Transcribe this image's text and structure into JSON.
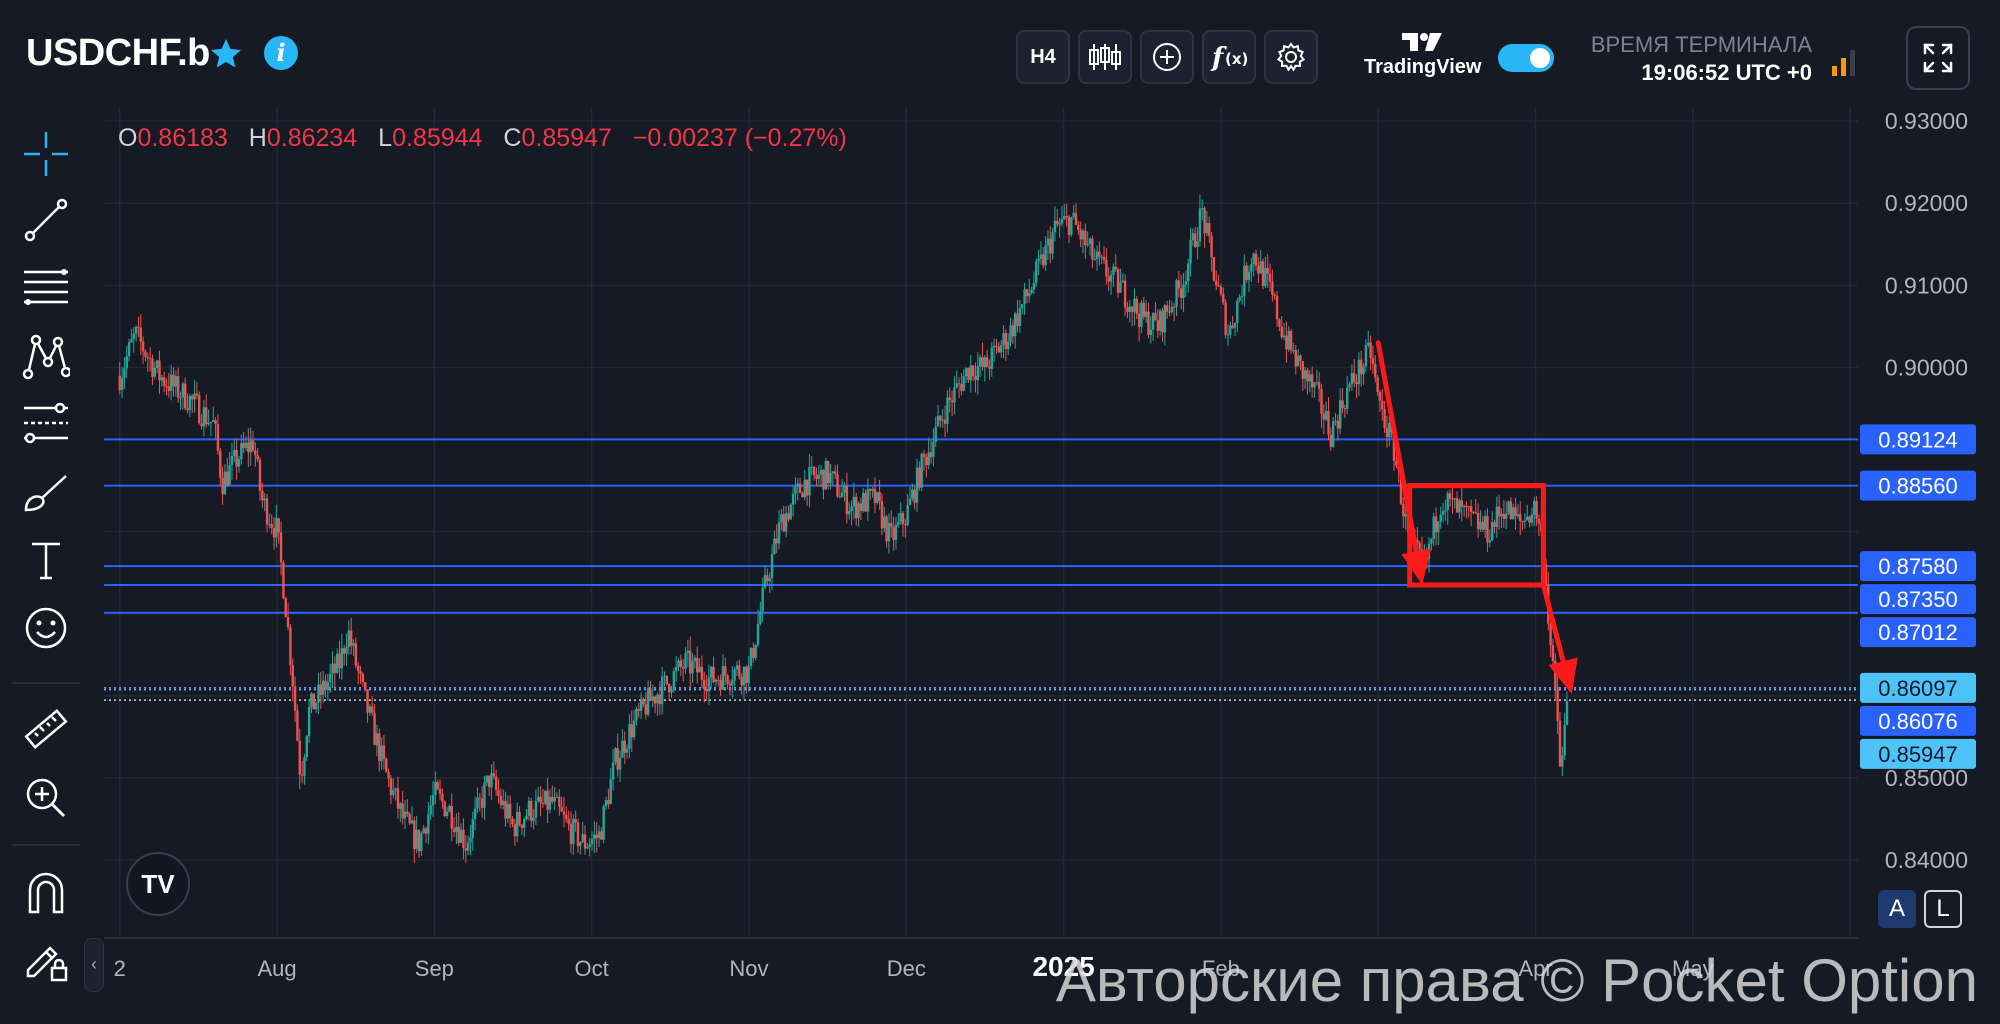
{
  "header": {
    "symbol": "USDCHF.b",
    "star_icon": "star-icon",
    "info_icon": "info-icon",
    "info_glyph": "i",
    "timeframe": "H4",
    "toolbar_icons": [
      "candles-icon",
      "add-circle-icon",
      "indicators-icon",
      "gear-icon"
    ],
    "tradingview_logo": "TradingView",
    "toggle_on": true,
    "terminal_label": "ВРЕМЯ ТЕРМИНАЛА",
    "terminal_time": "19:06:52 UTC +0",
    "signal_icon": "signal-bars-icon",
    "fullscreen_icon": "fullscreen-icon"
  },
  "left_toolbar": [
    "crosshair-icon",
    "trend-line-icon",
    "fib-levels-icon",
    "pattern-icon",
    "projection-icon",
    "brush-icon",
    "text-icon",
    "emoji-icon",
    "ruler-icon",
    "zoom-in-icon",
    "magnet-icon",
    "lock-pencil-icon"
  ],
  "ohlc": {
    "o_label": "O",
    "o": "0.86183",
    "h_label": "H",
    "h": "0.86234",
    "l_label": "L",
    "l": "0.85944",
    "c_label": "C",
    "c": "0.85947",
    "change": "−0.00237 (−0.27%)"
  },
  "scale_buttons": {
    "auto": "A",
    "log": "L"
  },
  "tv_badge": "TV",
  "watermark": "Авторские права © Pocket Option",
  "colors": {
    "background": "#161a25",
    "grid": "#232734",
    "up": "#26a69a",
    "down": "#ef5350",
    "level_line": "#2962ff",
    "arrow": "#ff1a1a",
    "price_tag_dark": "#2962ff",
    "price_tag_light": "#4fc3f7"
  },
  "chart_data": {
    "type": "candlestick",
    "timeframe": "H4",
    "y_tick_labels": [
      "0.93000",
      "0.92000",
      "0.91000",
      "0.90000",
      "0.85000",
      "0.84000"
    ],
    "y_ticks": [
      0.93,
      0.92,
      0.91,
      0.9,
      0.85,
      0.84
    ],
    "ylim": [
      0.8305,
      0.9316
    ],
    "x_tick_labels": [
      "2",
      "Aug",
      "Sep",
      "Oct",
      "Nov",
      "Dec",
      "2025",
      "Feb",
      "Apr",
      "May"
    ],
    "x_ticks": [
      0,
      1,
      2,
      3,
      4,
      5,
      6,
      7,
      9,
      10
    ],
    "xlim": [
      -0.1,
      11.05
    ],
    "horizontal_levels": [
      {
        "value": 0.89124,
        "label": "0.89124",
        "tag": "dark"
      },
      {
        "value": 0.8856,
        "label": "0.88560",
        "tag": "dark"
      },
      {
        "value": 0.8758,
        "label": "0.87580",
        "tag": "dark"
      },
      {
        "value": 0.8735,
        "label": "0.87350",
        "tag": "dark"
      },
      {
        "value": 0.87012,
        "label": "0.87012",
        "tag": "dark"
      }
    ],
    "price_markers": [
      {
        "value": 0.86097,
        "label": "0.86097",
        "tag": "light"
      },
      {
        "value": 0.86076,
        "label": "0.86076",
        "tag": "dark"
      },
      {
        "value": 0.85947,
        "label": "0.85947",
        "tag": "light",
        "dotted": true
      }
    ],
    "price_path": [
      [
        0.0,
        0.899
      ],
      [
        0.1,
        0.904
      ],
      [
        0.25,
        0.899
      ],
      [
        0.45,
        0.896
      ],
      [
        0.6,
        0.893
      ],
      [
        0.65,
        0.886
      ],
      [
        0.75,
        0.889
      ],
      [
        0.85,
        0.891
      ],
      [
        0.9,
        0.884
      ],
      [
        1.0,
        0.88
      ],
      [
        1.05,
        0.872
      ],
      [
        1.1,
        0.862
      ],
      [
        1.15,
        0.85
      ],
      [
        1.2,
        0.858
      ],
      [
        1.3,
        0.861
      ],
      [
        1.4,
        0.864
      ],
      [
        1.45,
        0.868
      ],
      [
        1.55,
        0.86
      ],
      [
        1.7,
        0.85
      ],
      [
        1.8,
        0.845
      ],
      [
        1.9,
        0.842
      ],
      [
        2.0,
        0.848
      ],
      [
        2.1,
        0.846
      ],
      [
        2.2,
        0.842
      ],
      [
        2.35,
        0.85
      ],
      [
        2.5,
        0.844
      ],
      [
        2.6,
        0.846
      ],
      [
        2.75,
        0.847
      ],
      [
        2.85,
        0.844
      ],
      [
        2.95,
        0.842
      ],
      [
        3.05,
        0.843
      ],
      [
        3.15,
        0.852
      ],
      [
        3.25,
        0.856
      ],
      [
        3.35,
        0.859
      ],
      [
        3.5,
        0.862
      ],
      [
        3.6,
        0.864
      ],
      [
        3.75,
        0.862
      ],
      [
        3.9,
        0.863
      ],
      [
        4.0,
        0.863
      ],
      [
        4.1,
        0.873
      ],
      [
        4.2,
        0.881
      ],
      [
        4.35,
        0.886
      ],
      [
        4.5,
        0.887
      ],
      [
        4.65,
        0.883
      ],
      [
        4.8,
        0.884
      ],
      [
        4.9,
        0.879
      ],
      [
        5.0,
        0.882
      ],
      [
        5.1,
        0.888
      ],
      [
        5.25,
        0.895
      ],
      [
        5.4,
        0.9
      ],
      [
        5.5,
        0.9
      ],
      [
        5.65,
        0.904
      ],
      [
        5.8,
        0.91
      ],
      [
        5.95,
        0.917
      ],
      [
        6.05,
        0.918
      ],
      [
        6.2,
        0.913
      ],
      [
        6.35,
        0.91
      ],
      [
        6.5,
        0.906
      ],
      [
        6.6,
        0.905
      ],
      [
        6.75,
        0.91
      ],
      [
        6.88,
        0.919
      ],
      [
        6.95,
        0.912
      ],
      [
        7.05,
        0.904
      ],
      [
        7.15,
        0.911
      ],
      [
        7.2,
        0.914
      ],
      [
        7.3,
        0.91
      ],
      [
        7.4,
        0.904
      ],
      [
        7.5,
        0.9
      ],
      [
        7.6,
        0.897
      ],
      [
        7.7,
        0.892
      ],
      [
        7.8,
        0.897
      ],
      [
        7.95,
        0.902
      ],
      [
        8.0,
        0.896
      ],
      [
        8.1,
        0.89
      ],
      [
        8.2,
        0.878
      ],
      [
        8.3,
        0.876
      ],
      [
        8.4,
        0.884
      ],
      [
        8.55,
        0.882
      ],
      [
        8.7,
        0.88
      ],
      [
        8.8,
        0.883
      ],
      [
        8.9,
        0.881
      ],
      [
        9.0,
        0.883
      ],
      [
        9.05,
        0.878
      ],
      [
        9.1,
        0.865
      ],
      [
        9.14,
        0.857
      ],
      [
        9.16,
        0.85
      ],
      [
        9.2,
        0.859
      ]
    ],
    "annotations": {
      "arrows": [
        {
          "from": [
            8.0,
            0.903
          ],
          "to": [
            8.28,
            0.8735
          ]
        },
        {
          "from": [
            9.05,
            0.8735
          ],
          "to": [
            9.23,
            0.8602
          ]
        }
      ],
      "rectangle": {
        "x0": 8.2,
        "x1": 9.05,
        "y0": 0.8735,
        "y1": 0.8856
      }
    }
  }
}
